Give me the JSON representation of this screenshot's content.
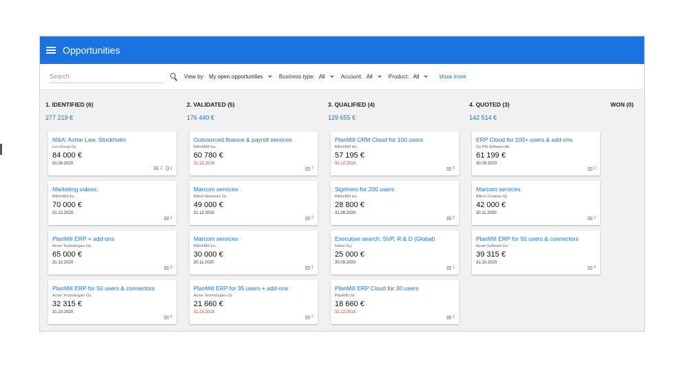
{
  "header": {
    "title": "Opportunities"
  },
  "filters": {
    "search_placeholder": "Search",
    "view_by_label": "View by:",
    "view_by_value": "My open opportunities",
    "business_type_label": "Business type:",
    "business_type_value": "All",
    "account_label": "Account:",
    "account_value": "All",
    "product_label": "Product:",
    "product_value": "All",
    "show_more": "show more"
  },
  "columns": [
    {
      "title": "1. IDENTIFIED (6)",
      "total": "277 219 €",
      "cards": [
        {
          "title": "M&A: Acme Law, Stockholm",
          "company": "Lex Group Oy",
          "value": "84 000 €",
          "date": "31.08.2020",
          "overdue": false,
          "comments": "2",
          "attachments": "1"
        },
        {
          "title": "Marketing videos",
          "company": "BillionMill Inc.",
          "value": "70 000 €",
          "date": "31.12.2020",
          "overdue": false,
          "comments": "1"
        },
        {
          "title": "PlanMill ERP + add-ons",
          "company": "Acme Technologies Oy",
          "value": "65 000 €",
          "date": "31.12.2020",
          "overdue": false,
          "comments": "2"
        },
        {
          "title": "PlanMill ERP for 50 users & connectors",
          "company": "Acme Technologies Oy",
          "value": "32 315 €",
          "date": "31.10.2020",
          "overdue": false,
          "comments": "4"
        }
      ]
    },
    {
      "title": "2. VALIDATED (5)",
      "total": "176 440 €",
      "cards": [
        {
          "title": "Outsourced finance & payroll services",
          "company": "BillionMill Inc.",
          "value": "60 780 €",
          "date": "31.12.2019",
          "overdue": true,
          "comments": "7"
        },
        {
          "title": "Marcom services",
          "company": "Billion Networks Oy",
          "value": "49 000 €",
          "date": "31.12.2020",
          "overdue": false,
          "comments": "2"
        },
        {
          "title": "Marcom services",
          "company": "BillionMill Inc.",
          "value": "30 000 €",
          "date": "30.11.2020",
          "overdue": false,
          "comments": "1"
        },
        {
          "title": "PlanMill ERP for 35 users + add-ons",
          "company": "Acme Technologies Oy",
          "value": "21 660 €",
          "date": "31.10.2019",
          "overdue": true,
          "comments": "2"
        }
      ]
    },
    {
      "title": "3. QUALIFIED (4)",
      "total": "129 655 €",
      "cards": [
        {
          "title": "PlanMill CRM Cloud for 100 users",
          "company": "BillionMill Inc.",
          "value": "57 195 €",
          "date": "31.12.2019",
          "overdue": true,
          "comments": "3"
        },
        {
          "title": "Signhero for 200 users",
          "company": "BillionMill Inc.",
          "value": "28 800 €",
          "date": "31.08.2020",
          "overdue": false,
          "comments": "3"
        },
        {
          "title": "Executive search: SVP, R & D (Global)",
          "company": "Nokia Oyj",
          "value": "25 000 €",
          "date": "30.09.2020",
          "overdue": false,
          "comments": "1"
        },
        {
          "title": "PlanMill ERP Cloud for 30 users",
          "company": "PlanMill Ltd.",
          "value": "18 660 €",
          "date": "31.12.2019",
          "overdue": true,
          "comments": "2"
        }
      ]
    },
    {
      "title": "4. QUOTED (3)",
      "total": "142 514 €",
      "cards": [
        {
          "title": "ERP Cloud for 100+ users & add-ons",
          "company": "Oy PM Software Ab",
          "value": "61 199 €",
          "date": "30.09.2020",
          "overdue": false,
          "comments": "2"
        },
        {
          "title": "Marcom services",
          "company": "Billion Creative Oy",
          "value": "42 000 €",
          "date": "30.11.2020",
          "overdue": false,
          "comments": "2"
        },
        {
          "title": "PlanMill ERP for 50 users & connectors",
          "company": "Acme Software Inc.",
          "value": "39 315 €",
          "date": "31.10.2020",
          "overdue": false,
          "comments": "4"
        }
      ]
    },
    {
      "title": "WON (0)",
      "total": "",
      "cards": []
    }
  ],
  "colors": {
    "accent": "#1a73e0",
    "overdue": "#e53935",
    "background": "#f1f1f1"
  },
  "icons": {
    "menu": "menu-icon",
    "search": "search-icon",
    "comment": "comment-icon",
    "attachment": "paperclip-icon"
  }
}
